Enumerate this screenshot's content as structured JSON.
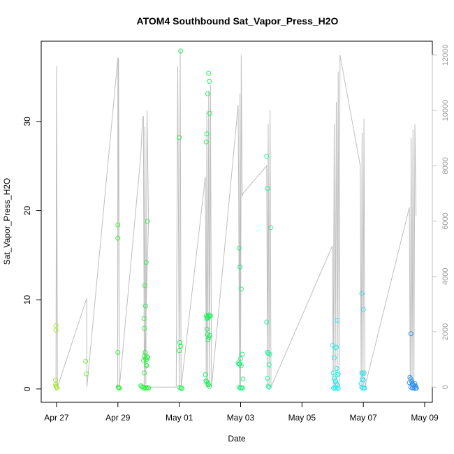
{
  "chart_data": {
    "type": "scatter",
    "title": "ATOM4 Southbound Sat_Vapor_Press_H2O",
    "xlabel": "Date",
    "ylabel": "Sat_Vapor_Press_H2O",
    "x_unit": "days from Apr 27",
    "xlim": [
      -0.5,
      12.25
    ],
    "ylim": [
      -1.5,
      39.0
    ],
    "y2lim": [
      -550,
      12500
    ],
    "x_ticks": [
      {
        "value": 0,
        "label": "Apr 27"
      },
      {
        "value": 2,
        "label": "Apr 29"
      },
      {
        "value": 4,
        "label": "May 01"
      },
      {
        "value": 6,
        "label": "May 03"
      },
      {
        "value": 8,
        "label": "May 05"
      },
      {
        "value": 10,
        "label": "May 07"
      },
      {
        "value": 12,
        "label": "May 09"
      }
    ],
    "y_ticks": [
      0,
      10,
      20,
      30
    ],
    "y2_ticks": [
      0,
      2000,
      4000,
      6000,
      8000,
      10000,
      12000
    ],
    "points": [
      [
        -0.02,
        7.1
      ],
      [
        -0.02,
        6.6
      ],
      [
        -0.03,
        1.0
      ],
      [
        -0.03,
        0.5
      ],
      [
        -0.02,
        0.3
      ],
      [
        0.0,
        0.2
      ],
      [
        0.02,
        0.1
      ],
      [
        0.95,
        3.1
      ],
      [
        0.97,
        1.7
      ],
      [
        2.0,
        18.4
      ],
      [
        2.0,
        16.9
      ],
      [
        2.0,
        4.1
      ],
      [
        2.01,
        0.2
      ],
      [
        2.03,
        0.15
      ],
      [
        2.05,
        0.1
      ],
      [
        2.75,
        0.35
      ],
      [
        2.78,
        0.25
      ],
      [
        2.82,
        0.2
      ],
      [
        2.86,
        0.1
      ],
      [
        2.85,
        7.9
      ],
      [
        2.86,
        6.8
      ],
      [
        2.88,
        11.6
      ],
      [
        2.9,
        9.3
      ],
      [
        2.92,
        14.2
      ],
      [
        2.96,
        18.8
      ],
      [
        2.84,
        3.2
      ],
      [
        2.87,
        3.7
      ],
      [
        2.89,
        4.1
      ],
      [
        2.9,
        3.4
      ],
      [
        2.93,
        3.3
      ],
      [
        2.95,
        3.6
      ],
      [
        2.98,
        3.5
      ],
      [
        2.92,
        2.7
      ],
      [
        2.94,
        2.6
      ],
      [
        2.86,
        1.8
      ],
      [
        2.88,
        0.2
      ],
      [
        2.92,
        0.1
      ],
      [
        2.97,
        0.15
      ],
      [
        3.0,
        0.1
      ],
      [
        4.0,
        28.2
      ],
      [
        4.05,
        37.9
      ],
      [
        4.02,
        5.2
      ],
      [
        4.05,
        4.8
      ],
      [
        4.0,
        4.3
      ],
      [
        4.02,
        0.15
      ],
      [
        4.06,
        0.1
      ],
      [
        4.09,
        0.05
      ],
      [
        4.85,
        1.6
      ],
      [
        4.87,
        0.9
      ],
      [
        4.9,
        0.8
      ],
      [
        4.93,
        0.6
      ],
      [
        4.95,
        0.5
      ],
      [
        4.98,
        0.3
      ],
      [
        4.88,
        27.7
      ],
      [
        4.9,
        28.6
      ],
      [
        4.93,
        33.1
      ],
      [
        4.96,
        35.4
      ],
      [
        4.98,
        34.5
      ],
      [
        5.0,
        30.9
      ],
      [
        4.88,
        8.2
      ],
      [
        4.9,
        7.9
      ],
      [
        4.92,
        8.1
      ],
      [
        4.94,
        8.0
      ],
      [
        4.96,
        8.3
      ],
      [
        4.98,
        8.2
      ],
      [
        5.02,
        8.2
      ],
      [
        4.9,
        6.7
      ],
      [
        4.92,
        6.1
      ],
      [
        4.96,
        5.8
      ],
      [
        5.0,
        6.0
      ],
      [
        4.94,
        5.5
      ],
      [
        5.95,
        15.8
      ],
      [
        5.98,
        13.7
      ],
      [
        6.02,
        11.2
      ],
      [
        5.92,
        2.9
      ],
      [
        5.95,
        2.8
      ],
      [
        5.98,
        2.8
      ],
      [
        6.02,
        2.6
      ],
      [
        6.0,
        3.4
      ],
      [
        6.05,
        3.9
      ],
      [
        6.08,
        1.1
      ],
      [
        5.95,
        0.2
      ],
      [
        5.99,
        0.1
      ],
      [
        6.03,
        0.15
      ],
      [
        6.06,
        0.1
      ],
      [
        6.85,
        26.1
      ],
      [
        6.88,
        22.5
      ],
      [
        6.98,
        18.1
      ],
      [
        6.85,
        7.5
      ],
      [
        6.88,
        4.1
      ],
      [
        6.9,
        4.0
      ],
      [
        6.95,
        3.9
      ],
      [
        6.93,
        2.7
      ],
      [
        6.88,
        1.2
      ],
      [
        6.9,
        0.3
      ],
      [
        6.93,
        0.2
      ],
      [
        9.0,
        4.9
      ],
      [
        9.02,
        1.8
      ],
      [
        9.05,
        3.5
      ],
      [
        9.08,
        4.6
      ],
      [
        9.12,
        4.7
      ],
      [
        9.15,
        7.7
      ],
      [
        9.13,
        2.3
      ],
      [
        9.05,
        1.2
      ],
      [
        9.08,
        0.9
      ],
      [
        9.1,
        0.8
      ],
      [
        9.12,
        0.6
      ],
      [
        9.15,
        1.6
      ],
      [
        9.18,
        1.7
      ],
      [
        9.16,
        0.4
      ],
      [
        9.03,
        0.1
      ],
      [
        9.06,
        0.05
      ],
      [
        9.1,
        0.1
      ],
      [
        9.14,
        0.08
      ],
      [
        9.18,
        0.06
      ],
      [
        9.95,
        10.7
      ],
      [
        10.0,
        8.9
      ],
      [
        9.95,
        1.8
      ],
      [
        9.98,
        1.7
      ],
      [
        10.02,
        1.8
      ],
      [
        9.96,
        1.1
      ],
      [
        10.0,
        1.0
      ],
      [
        9.93,
        0.6
      ],
      [
        9.95,
        0.2
      ],
      [
        9.98,
        0.1
      ],
      [
        10.02,
        0.08
      ],
      [
        10.04,
        0.1
      ],
      [
        11.55,
        6.2
      ],
      [
        11.52,
        1.3
      ],
      [
        11.55,
        1.1
      ],
      [
        11.5,
        0.7
      ],
      [
        11.58,
        0.8
      ],
      [
        11.6,
        0.6
      ],
      [
        11.62,
        0.5
      ],
      [
        11.65,
        0.4
      ],
      [
        11.68,
        0.6
      ],
      [
        11.7,
        0.3
      ],
      [
        11.55,
        0.2
      ],
      [
        11.6,
        0.1
      ],
      [
        11.65,
        0.1
      ],
      [
        11.7,
        0.05
      ],
      [
        11.73,
        0.1
      ]
    ],
    "line_right_axis": [
      [
        -0.02,
        0
      ],
      [
        0.0,
        5300
      ],
      [
        -0.02,
        0
      ],
      [
        0.0,
        11600
      ],
      [
        0.03,
        0
      ],
      [
        0.98,
        3200
      ],
      [
        0.99,
        0
      ],
      [
        2.0,
        11900
      ],
      [
        1.99,
        0
      ],
      [
        2.02,
        11900
      ],
      [
        2.05,
        0
      ],
      [
        2.75,
        8400
      ],
      [
        2.8,
        9700
      ],
      [
        2.83,
        9800
      ],
      [
        2.86,
        0
      ],
      [
        2.88,
        9400
      ],
      [
        2.91,
        100
      ],
      [
        2.95,
        10000
      ],
      [
        3.0,
        6000
      ],
      [
        2.85,
        0
      ],
      [
        2.97,
        0
      ],
      [
        3.9,
        0
      ],
      [
        3.95,
        11600
      ],
      [
        4.0,
        0
      ],
      [
        4.03,
        12200
      ],
      [
        4.06,
        0
      ],
      [
        4.85,
        7600
      ],
      [
        4.88,
        0
      ],
      [
        4.9,
        10000
      ],
      [
        4.93,
        0
      ],
      [
        4.96,
        10700
      ],
      [
        4.99,
        0
      ],
      [
        5.02,
        10900
      ],
      [
        5.05,
        0
      ],
      [
        5.92,
        10200
      ],
      [
        5.94,
        6000
      ],
      [
        5.96,
        0
      ],
      [
        5.98,
        10600
      ],
      [
        6.0,
        0
      ],
      [
        6.02,
        12000
      ],
      [
        6.05,
        6900
      ],
      [
        6.08,
        7000
      ],
      [
        6.85,
        8000
      ],
      [
        6.88,
        0
      ],
      [
        6.9,
        9500
      ],
      [
        6.93,
        0
      ],
      [
        6.96,
        10000
      ],
      [
        6.99,
        0
      ],
      [
        8.99,
        5100
      ],
      [
        9.02,
        0
      ],
      [
        9.05,
        9500
      ],
      [
        9.08,
        0
      ],
      [
        9.12,
        10300
      ],
      [
        9.15,
        0
      ],
      [
        9.18,
        11400
      ],
      [
        9.21,
        0
      ],
      [
        9.24,
        12000
      ],
      [
        9.9,
        8000
      ],
      [
        9.93,
        0
      ],
      [
        9.96,
        9200
      ],
      [
        9.99,
        0
      ],
      [
        10.02,
        9700
      ],
      [
        10.05,
        0
      ],
      [
        11.5,
        6500
      ],
      [
        11.53,
        0
      ],
      [
        11.56,
        9000
      ],
      [
        11.59,
        0
      ],
      [
        11.62,
        9300
      ],
      [
        11.65,
        0
      ],
      [
        11.68,
        9500
      ],
      [
        11.72,
        6200
      ]
    ]
  }
}
